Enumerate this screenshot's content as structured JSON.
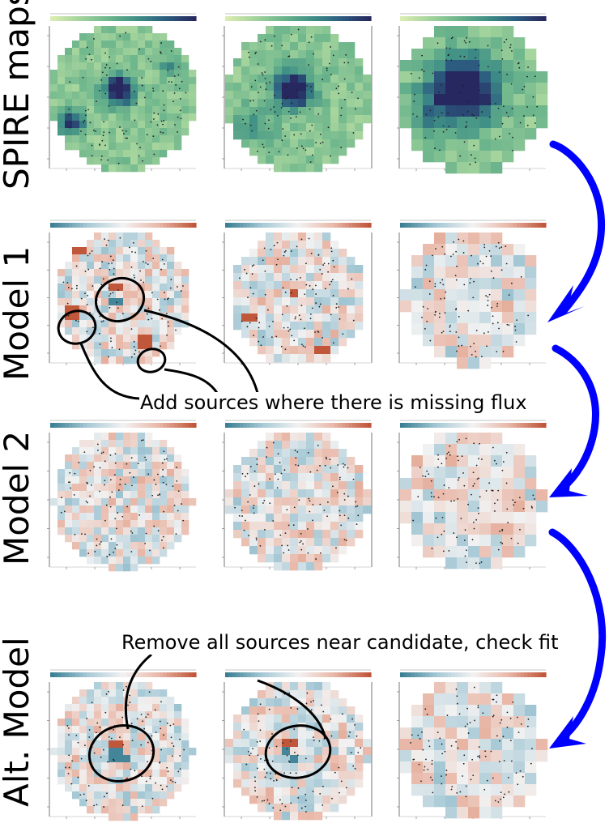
{
  "rows": [
    {
      "label": "SPIRE maps",
      "kind": "spire"
    },
    {
      "label": "Model 1",
      "kind": "resid1"
    },
    {
      "label": "Model 2",
      "kind": "resid2"
    },
    {
      "label": "Alt. Model",
      "kind": "alt"
    }
  ],
  "annotations": {
    "add_sources": "Add sources where there is missing flux",
    "remove_sources": "Remove all sources near candidate, check fit"
  },
  "colors": {
    "arrow": "#0000ff",
    "spire_colormap": [
      "#d9ecb2",
      "#a3d39c",
      "#6cb58c",
      "#3f8f86",
      "#2c5d80",
      "#27285f"
    ],
    "residual_colormap": [
      "#3b7f94",
      "#a7c9d6",
      "#f2f2f2",
      "#e9b8a8",
      "#c0563a"
    ]
  }
}
